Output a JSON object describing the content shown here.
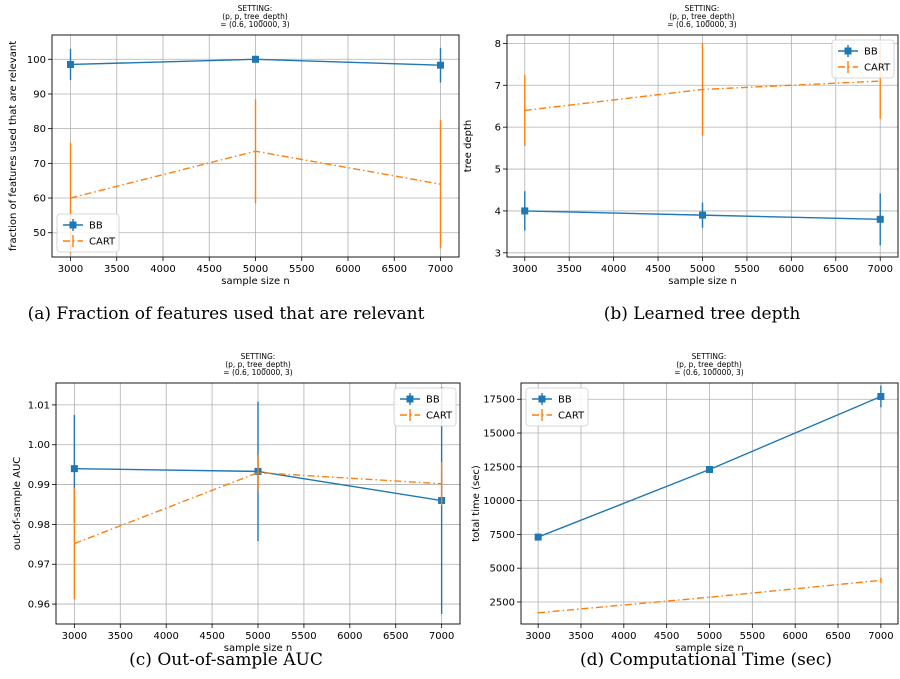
{
  "figure": {
    "colors": {
      "bb": "#1f77b4",
      "cart": "#ff7f0e",
      "grid": "#b0b0b0"
    }
  },
  "chart_data": [
    {
      "id": "a",
      "type": "line",
      "caption": "(a) Fraction of features used that are relevant",
      "title_lines": [
        "SETTING:",
        "(p, p, tree_depth)",
        "= (0.6, 100000, 3)"
      ],
      "xlabel": "sample size n",
      "ylabel": "fraction of features used that are relevant",
      "x": [
        3000,
        5000,
        7000
      ],
      "xlim": [
        2800,
        7200
      ],
      "ylim": [
        43,
        107
      ],
      "xticks": [
        3000,
        3500,
        4000,
        4500,
        5000,
        5500,
        6000,
        6500,
        7000
      ],
      "yticks": [
        50,
        60,
        70,
        80,
        90,
        100
      ],
      "legend_position": "lower-left",
      "grid": true,
      "series": [
        {
          "name": "BB",
          "style": "solid-square",
          "values": [
            98.5,
            100,
            98.3
          ],
          "err": [
            4.5,
            0,
            5
          ]
        },
        {
          "name": "CART",
          "style": "dashdot",
          "values": [
            60,
            73.5,
            64
          ],
          "err": [
            16,
            15,
            18.5
          ]
        }
      ]
    },
    {
      "id": "b",
      "type": "line",
      "caption": "(b) Learned tree depth",
      "title_lines": [
        "SETTING:",
        "(p, p, tree_depth)",
        "= (0.6, 100000, 3)"
      ],
      "xlabel": "sample size n",
      "ylabel": "tree depth",
      "x": [
        3000,
        5000,
        7000
      ],
      "xlim": [
        2800,
        7200
      ],
      "ylim": [
        2.9,
        8.2
      ],
      "xticks": [
        3000,
        3500,
        4000,
        4500,
        5000,
        5500,
        6000,
        6500,
        7000
      ],
      "yticks": [
        3,
        4,
        5,
        6,
        7,
        8
      ],
      "legend_position": "upper-right",
      "grid": true,
      "series": [
        {
          "name": "BB",
          "style": "solid-square",
          "values": [
            4.0,
            3.9,
            3.8
          ],
          "err": [
            0.47,
            0.3,
            0.62
          ]
        },
        {
          "name": "CART",
          "style": "dashdot",
          "values": [
            6.4,
            6.9,
            7.1
          ],
          "err": [
            0.85,
            1.1,
            0.9
          ]
        }
      ]
    },
    {
      "id": "c",
      "type": "line",
      "caption": "(c) Out-of-sample AUC",
      "title_lines": [
        "SETTING:",
        "(p, p, tree_depth)",
        "= (0.6, 100000, 3)"
      ],
      "xlabel": "sample size n",
      "ylabel": "out-of-sample AUC",
      "x": [
        3000,
        5000,
        7000
      ],
      "xlim": [
        2800,
        7200
      ],
      "ylim": [
        0.955,
        1.0155
      ],
      "xticks": [
        3000,
        3500,
        4000,
        4500,
        5000,
        5500,
        6000,
        6500,
        7000
      ],
      "yticks": [
        0.96,
        0.97,
        0.98,
        0.99,
        1.0,
        1.01
      ],
      "ytick_labels": [
        "0.96",
        "0.97",
        "0.98",
        "0.99",
        "1.00",
        "1.01"
      ],
      "legend_position": "upper-right",
      "grid": true,
      "series": [
        {
          "name": "BB",
          "style": "solid-square",
          "values": [
            0.994,
            0.9933,
            0.986
          ],
          "err": [
            0.0135,
            0.0175,
            0.0285
          ]
        },
        {
          "name": "CART",
          "style": "dashdot",
          "values": [
            0.9752,
            0.993,
            0.9902
          ],
          "err": [
            0.014,
            0.0045,
            0.0055
          ]
        }
      ]
    },
    {
      "id": "d",
      "type": "line",
      "caption": "(d) Computational Time (sec)",
      "title_lines": [
        "SETTING:",
        "(p, p, tree_depth)",
        "= (0.6, 100000, 3)"
      ],
      "xlabel": "sample size n",
      "ylabel": "total time (sec)",
      "x": [
        3000,
        5000,
        7000
      ],
      "xlim": [
        2800,
        7200
      ],
      "ylim": [
        870,
        18700
      ],
      "xticks": [
        3000,
        3500,
        4000,
        4500,
        5000,
        5500,
        6000,
        6500,
        7000
      ],
      "yticks": [
        2500,
        5000,
        7500,
        10000,
        12500,
        15000,
        17500
      ],
      "legend_position": "upper-left",
      "grid": true,
      "series": [
        {
          "name": "BB",
          "style": "solid-square",
          "values": [
            7300,
            12300,
            17700
          ],
          "err": [
            250,
            200,
            800
          ]
        },
        {
          "name": "CART",
          "style": "dashdot",
          "values": [
            1700,
            2850,
            4100
          ],
          "err": [
            50,
            50,
            200
          ]
        }
      ]
    }
  ]
}
